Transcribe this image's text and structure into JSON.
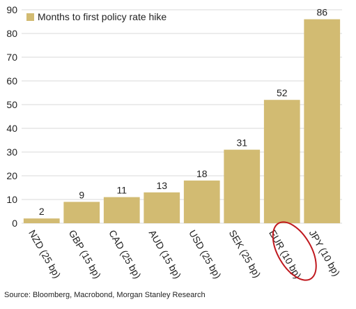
{
  "chart_data": {
    "type": "bar",
    "categories": [
      "NZD (25 bp)",
      "GBP (15 bp)",
      "CAD (25 bp)",
      "AUD (15 bp)",
      "USD (25 bp)",
      "SEK (25 bp)",
      "EUR (10 bp)",
      "JPY (10 bp)"
    ],
    "series": [
      {
        "name": "Months to first policy rate hike",
        "values": [
          2,
          9,
          11,
          13,
          18,
          31,
          52,
          86
        ]
      }
    ],
    "data_labels": [
      "2",
      "9",
      "11",
      "13",
      "18",
      "31",
      "52",
      "86"
    ],
    "ylim": [
      0,
      90
    ],
    "yticks": [
      "0",
      "10",
      "20",
      "30",
      "40",
      "50",
      "60",
      "70",
      "80",
      "90"
    ],
    "grid": true,
    "legend": "top-left",
    "highlighted_category": "EUR (10 bp)",
    "colors": {
      "bar": "#d2bb72",
      "grid": "#d9d9d9",
      "highlight": "#c0191f"
    }
  },
  "source": "Source: Bloomberg, Macrobond, Morgan Stanley Research"
}
